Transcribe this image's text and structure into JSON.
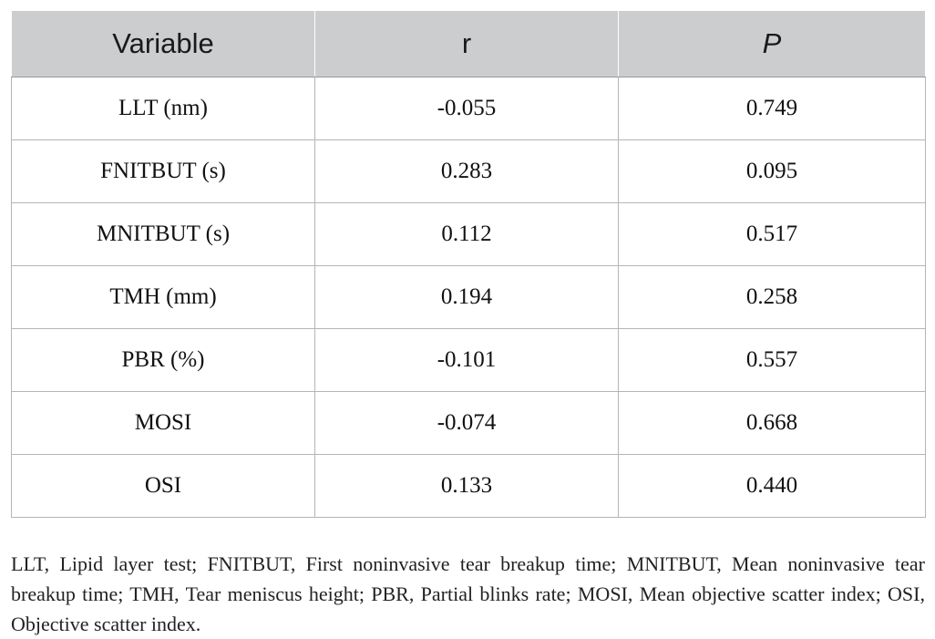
{
  "table": {
    "headers": [
      "Variable",
      "r",
      "P"
    ],
    "rows": [
      [
        "LLT (nm)",
        "-0.055",
        "0.749"
      ],
      [
        "FNITBUT (s)",
        "0.283",
        "0.095"
      ],
      [
        "MNITBUT (s)",
        "0.112",
        "0.517"
      ],
      [
        "TMH (mm)",
        "0.194",
        "0.258"
      ],
      [
        "PBR (%)",
        "-0.101",
        "0.557"
      ],
      [
        "MOSI",
        "-0.074",
        "0.668"
      ],
      [
        "OSI",
        "0.133",
        "0.440"
      ]
    ]
  },
  "footnote": "LLT, Lipid layer test; FNITBUT, First noninvasive tear breakup time; MNITBUT, Mean noninvasive tear breakup time; TMH, Tear meniscus height; PBR, Partial blinks rate; MOSI, Mean objective scatter index; OSI, Objective scatter index."
}
